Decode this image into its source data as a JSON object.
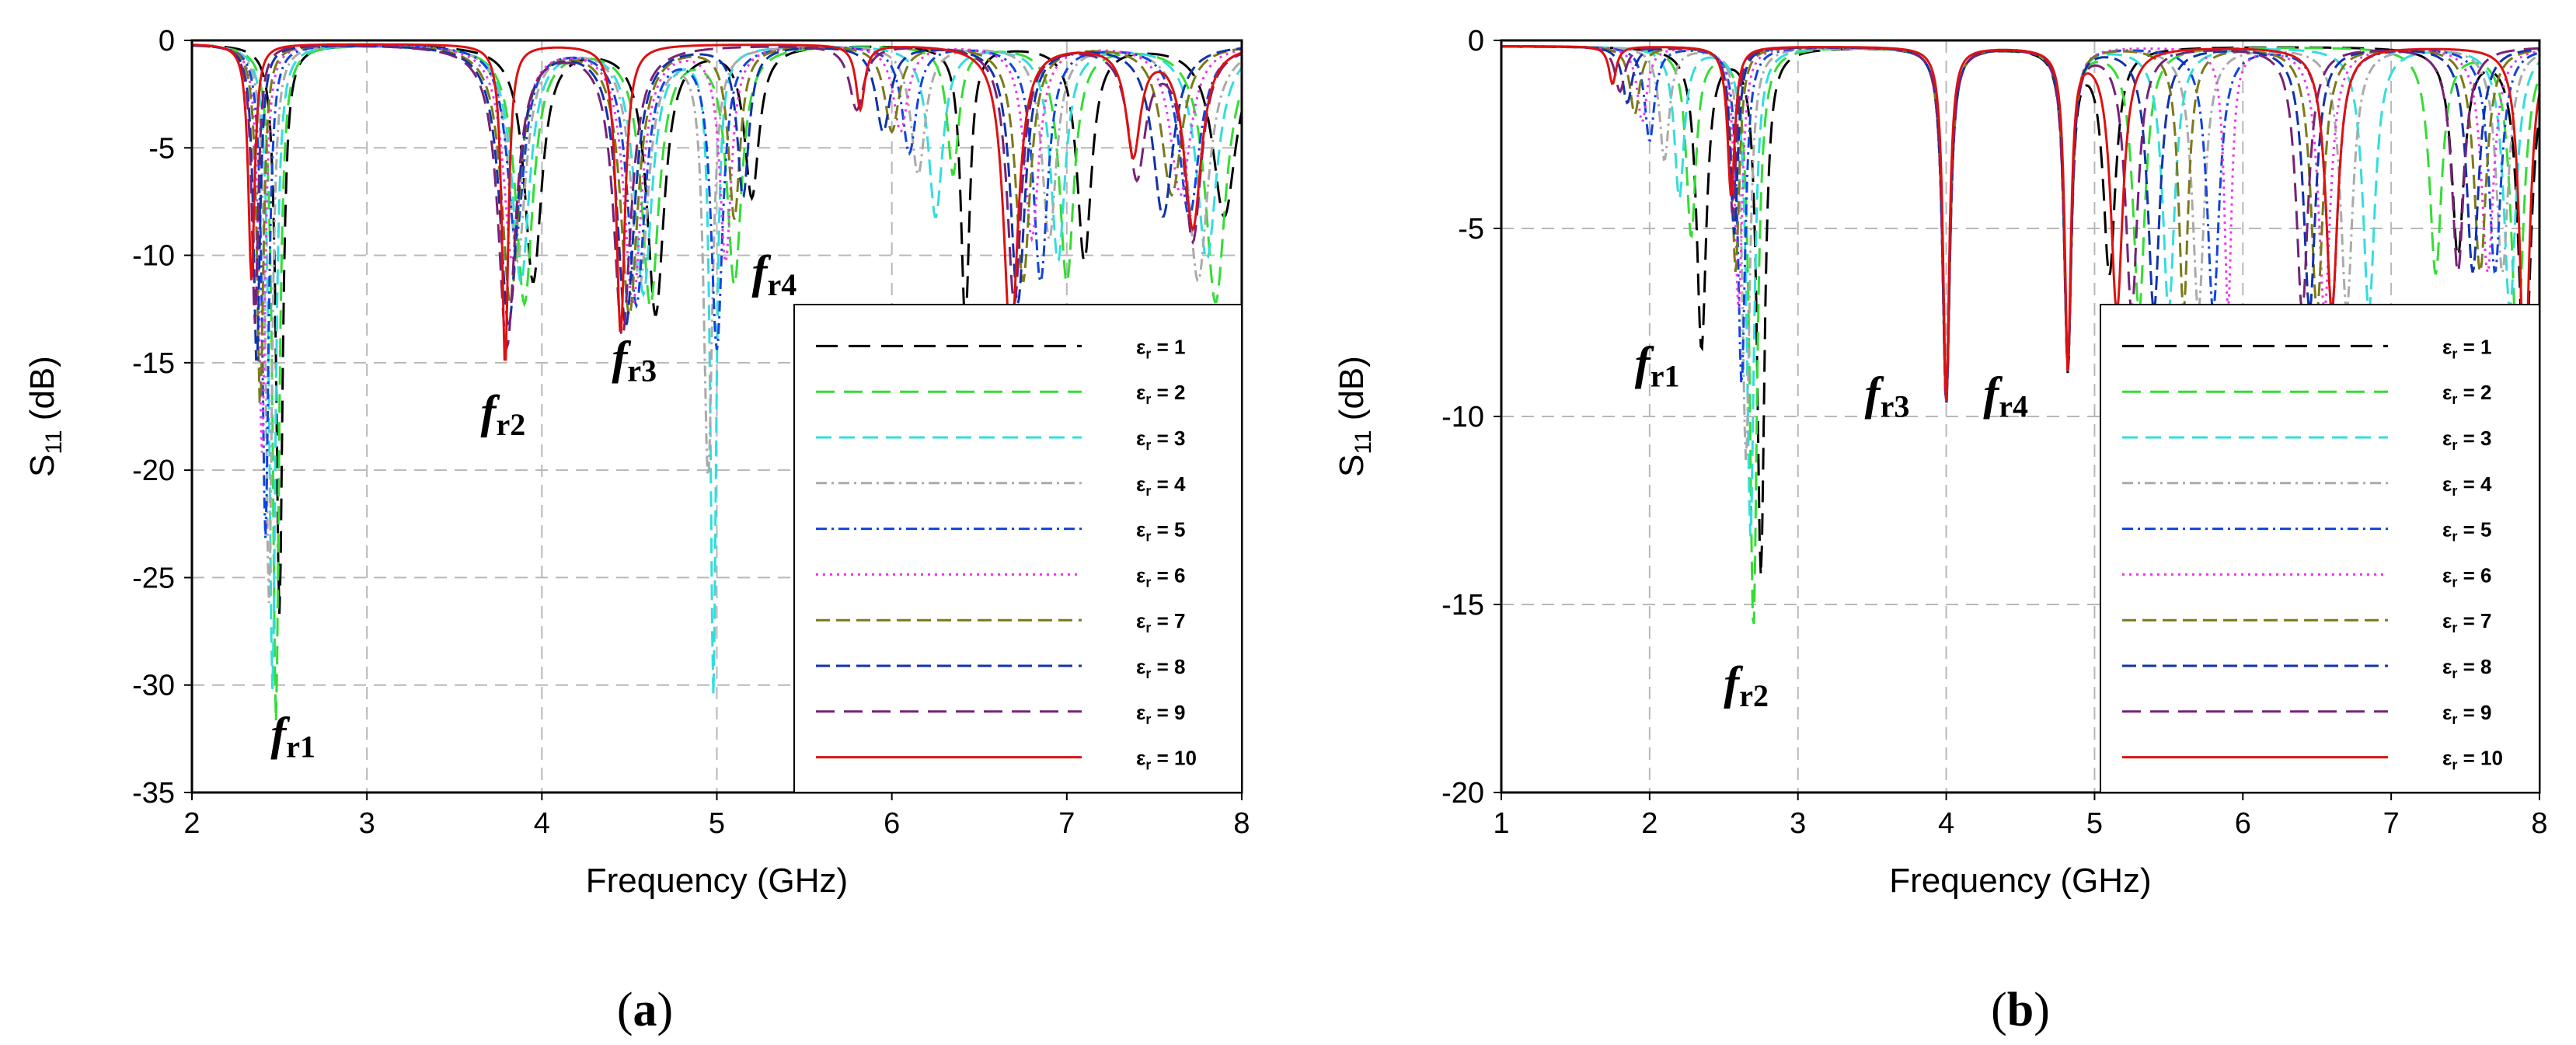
{
  "chart_data": [
    {
      "type": "line",
      "panel_label": "a",
      "xlabel": "Frequency (GHz)",
      "ylabel_main": "S",
      "ylabel_sub": "11",
      "ylabel_unit": " (dB)",
      "xlim": [
        2,
        8
      ],
      "ylim": [
        -35,
        0
      ],
      "xticks": [
        2,
        3,
        4,
        5,
        6,
        7,
        8
      ],
      "yticks": [
        0,
        -5,
        -10,
        -15,
        -20,
        -25,
        -30,
        -35
      ],
      "grid": true,
      "legend_position": "bottom-right",
      "annotations": [
        {
          "main": "f",
          "sub": "r1",
          "x": 2.45,
          "y": -33
        },
        {
          "main": "f",
          "sub": "r2",
          "x": 3.65,
          "y": -18
        },
        {
          "main": "f",
          "sub": "r3",
          "x": 4.4,
          "y": -15.5
        },
        {
          "main": "f",
          "sub": "r4",
          "x": 5.2,
          "y": -11.5
        }
      ],
      "series": [
        {
          "name": "εr = 1",
          "sym": "ε",
          "sub": "r",
          "val": " = 1",
          "color": "#000000",
          "dash": "28,14",
          "dips": [
            [
              2.5,
              -26.5,
              0.022
            ],
            [
              3.95,
              -11,
              0.06
            ],
            [
              4.65,
              -12.5,
              0.06
            ],
            [
              5.2,
              -7,
              0.05
            ],
            [
              6.42,
              -13,
              0.03
            ],
            [
              7.1,
              -10,
              0.05
            ],
            [
              7.9,
              -8,
              0.08
            ]
          ]
        },
        {
          "name": "εr = 2",
          "sym": "ε",
          "sub": "r",
          "val": " = 2",
          "color": "#33dd33",
          "dash": "24,12",
          "dips": [
            [
              2.48,
              -31.5,
              0.022
            ],
            [
              3.9,
              -12,
              0.06
            ],
            [
              4.62,
              -12,
              0.06
            ],
            [
              5.1,
              -11,
              0.05
            ],
            [
              6.35,
              -6,
              0.04
            ],
            [
              7.0,
              -11,
              0.05
            ],
            [
              7.85,
              -12,
              0.07
            ]
          ]
        },
        {
          "name": "εr = 3",
          "sym": "ε",
          "sub": "r",
          "val": " = 3",
          "color": "#33dddd",
          "dash": "20,10",
          "dips": [
            [
              2.46,
              -30,
              0.022
            ],
            [
              3.88,
              -11,
              0.06
            ],
            [
              4.58,
              -11.5,
              0.06
            ],
            [
              4.98,
              -30,
              0.02
            ],
            [
              6.25,
              -8,
              0.05
            ],
            [
              6.95,
              -10,
              0.05
            ],
            [
              7.8,
              -10,
              0.07
            ]
          ]
        },
        {
          "name": "εr = 4",
          "sym": "ε",
          "sub": "r",
          "val": " = 4",
          "color": "#aaaaaa",
          "dash": "14,6,3,6",
          "dips": [
            [
              2.44,
              -26,
              0.022
            ],
            [
              3.86,
              -10,
              0.06
            ],
            [
              4.56,
              -11,
              0.06
            ],
            [
              4.95,
              -20,
              0.03
            ],
            [
              6.15,
              -6,
              0.05
            ],
            [
              6.9,
              -9,
              0.05
            ],
            [
              7.75,
              -11,
              0.07
            ]
          ]
        },
        {
          "name": "εr = 5",
          "sym": "ε",
          "sub": "r",
          "val": " = 5",
          "color": "#1144dd",
          "dash": "14,6,3,6",
          "dips": [
            [
              2.42,
              -23,
              0.022
            ],
            [
              3.85,
              -9,
              0.06
            ],
            [
              4.54,
              -12,
              0.06
            ],
            [
              5.0,
              -14,
              0.04
            ],
            [
              6.1,
              -5,
              0.05
            ],
            [
              6.85,
              -11,
              0.05
            ],
            [
              7.7,
              -8,
              0.07
            ]
          ]
        },
        {
          "name": "εr = 6",
          "sym": "ε",
          "sub": "r",
          "val": " = 6",
          "color": "#ee33ee",
          "dash": "3,6",
          "dips": [
            [
              2.4,
              -19,
              0.022
            ],
            [
              3.83,
              -10,
              0.06
            ],
            [
              4.52,
              -12,
              0.06
            ],
            [
              5.05,
              -10,
              0.04
            ],
            [
              6.05,
              -4,
              0.05
            ],
            [
              6.8,
              -9,
              0.05
            ],
            [
              7.65,
              -7,
              0.07
            ]
          ]
        },
        {
          "name": "εr = 7",
          "sym": "ε",
          "sub": "r",
          "val": " = 7",
          "color": "#7a7a1a",
          "dash": "18,8",
          "dips": [
            [
              2.39,
              -17,
              0.022
            ],
            [
              3.82,
              -12,
              0.06
            ],
            [
              4.5,
              -12.5,
              0.06
            ],
            [
              5.1,
              -8,
              0.04
            ],
            [
              6.0,
              -4,
              0.05
            ],
            [
              6.75,
              -11,
              0.05
            ],
            [
              7.6,
              -7,
              0.07
            ]
          ]
        },
        {
          "name": "εr = 8",
          "sym": "ε",
          "sub": "r",
          "val": " = 8",
          "color": "#1133aa",
          "dash": "18,8",
          "dips": [
            [
              2.37,
              -15,
              0.022
            ],
            [
              3.81,
              -13,
              0.06
            ],
            [
              4.48,
              -13,
              0.06
            ],
            [
              5.15,
              -7,
              0.04
            ],
            [
              5.95,
              -4,
              0.05
            ],
            [
              6.72,
              -12,
              0.05
            ],
            [
              7.55,
              -8,
              0.07
            ]
          ]
        },
        {
          "name": "εr = 9",
          "sym": "ε",
          "sub": "r",
          "val": " = 9",
          "color": "#772277",
          "dash": "24,12",
          "dips": [
            [
              2.36,
              -13,
              0.022
            ],
            [
              3.8,
              -14,
              0.06
            ],
            [
              4.46,
              -13.5,
              0.06
            ],
            [
              5.8,
              -3,
              0.05
            ],
            [
              6.7,
              -12,
              0.05
            ],
            [
              7.4,
              -6,
              0.06
            ],
            [
              7.72,
              -9,
              0.06
            ]
          ]
        },
        {
          "name": "εr = 10",
          "sym": "ε",
          "sub": "r",
          "val": " = 10",
          "color": "#dd1111",
          "dash": "",
          "dips": [
            [
              2.34,
              -11,
              0.022
            ],
            [
              3.79,
              -15,
              0.022
            ],
            [
              4.45,
              -13.5,
              0.03
            ],
            [
              5.82,
              -3,
              0.03
            ],
            [
              6.68,
              -14,
              0.05
            ],
            [
              7.38,
              -5,
              0.05
            ],
            [
              7.72,
              -8.5,
              0.06
            ]
          ]
        }
      ]
    },
    {
      "type": "line",
      "panel_label": "b",
      "xlabel": "Frequency (GHz)",
      "ylabel_main": "S",
      "ylabel_sub": "11",
      "ylabel_unit": " (dB)",
      "xlim": [
        1,
        8
      ],
      "ylim": [
        -20,
        0
      ],
      "xticks": [
        1,
        2,
        3,
        4,
        5,
        6,
        7,
        8
      ],
      "yticks": [
        0,
        -5,
        -10,
        -15,
        -20
      ],
      "grid": true,
      "legend_position": "bottom-right",
      "annotations": [
        {
          "main": "f",
          "sub": "r1",
          "x": 1.9,
          "y": -9
        },
        {
          "main": "f",
          "sub": "r2",
          "x": 2.5,
          "y": -17.5
        },
        {
          "main": "f",
          "sub": "r3",
          "x": 3.45,
          "y": -9.8
        },
        {
          "main": "f",
          "sub": "r4",
          "x": 4.25,
          "y": -9.8
        }
      ],
      "series": [
        {
          "name": "εr = 1",
          "sym": "ε",
          "sub": "r",
          "val": " = 1",
          "color": "#000000",
          "dash": "28,14",
          "dips": [
            [
              2.35,
              -8,
              0.04
            ],
            [
              2.75,
              -14,
              0.03
            ],
            [
              4.0,
              -9.5,
              0.03
            ],
            [
              4.82,
              -8.5,
              0.03
            ],
            [
              5.1,
              -6,
              0.05
            ],
            [
              7.45,
              -5.5,
              0.05
            ],
            [
              7.9,
              -9,
              0.05
            ]
          ]
        },
        {
          "name": "εr = 2",
          "sym": "ε",
          "sub": "r",
          "val": " = 2",
          "color": "#33dd33",
          "dash": "24,12",
          "dips": [
            [
              2.28,
              -5,
              0.04
            ],
            [
              2.7,
              -15.5,
              0.03
            ],
            [
              4.0,
              -9.5,
              0.03
            ],
            [
              4.82,
              -8.5,
              0.03
            ],
            [
              5.3,
              -7,
              0.05
            ],
            [
              7.3,
              -6,
              0.05
            ],
            [
              7.85,
              -8,
              0.05
            ]
          ]
        },
        {
          "name": "εr = 3",
          "sym": "ε",
          "sub": "r",
          "val": " = 3",
          "color": "#33dddd",
          "dash": "20,10",
          "dips": [
            [
              2.2,
              -4,
              0.04
            ],
            [
              2.68,
              -13,
              0.03
            ],
            [
              4.0,
              -9.5,
              0.03
            ],
            [
              4.82,
              -8.5,
              0.03
            ],
            [
              5.5,
              -7,
              0.05
            ],
            [
              6.85,
              -7,
              0.05
            ],
            [
              7.8,
              -7,
              0.05
            ]
          ]
        },
        {
          "name": "εr = 4",
          "sym": "ε",
          "sub": "r",
          "val": " = 4",
          "color": "#aaaaaa",
          "dash": "14,6,3,6",
          "dips": [
            [
              2.1,
              -3,
              0.04
            ],
            [
              2.65,
              -11,
              0.03
            ],
            [
              4.0,
              -9.5,
              0.03
            ],
            [
              4.82,
              -8.5,
              0.03
            ],
            [
              5.7,
              -7,
              0.05
            ],
            [
              6.7,
              -7,
              0.05
            ],
            [
              7.75,
              -6,
              0.05
            ]
          ]
        },
        {
          "name": "εr = 5",
          "sym": "ε",
          "sub": "r",
          "val": " = 5",
          "color": "#1144dd",
          "dash": "14,6,3,6",
          "dips": [
            [
              2.0,
              -2.5,
              0.04
            ],
            [
              2.62,
              -9,
              0.03
            ],
            [
              4.0,
              -9.5,
              0.03
            ],
            [
              4.82,
              -8.5,
              0.03
            ],
            [
              5.8,
              -7,
              0.05
            ],
            [
              6.6,
              -7,
              0.05
            ],
            [
              7.7,
              -6,
              0.05
            ]
          ]
        },
        {
          "name": "εr = 6",
          "sym": "ε",
          "sub": "r",
          "val": " = 6",
          "color": "#ee33ee",
          "dash": "3,6",
          "dips": [
            [
              1.95,
              -2,
              0.04
            ],
            [
              2.6,
              -7,
              0.03
            ],
            [
              4.0,
              -9.5,
              0.03
            ],
            [
              4.82,
              -8.5,
              0.03
            ],
            [
              5.9,
              -7,
              0.03
            ],
            [
              6.55,
              -7,
              0.05
            ],
            [
              7.65,
              -6,
              0.05
            ]
          ]
        },
        {
          "name": "εr = 7",
          "sym": "ε",
          "sub": "r",
          "val": " = 7",
          "color": "#7a7a1a",
          "dash": "18,8",
          "dips": [
            [
              1.9,
              -1.8,
              0.04
            ],
            [
              2.58,
              -6,
              0.03
            ],
            [
              4.0,
              -9.5,
              0.03
            ],
            [
              4.82,
              -8.5,
              0.03
            ],
            [
              5.6,
              -7,
              0.04
            ],
            [
              6.5,
              -7,
              0.05
            ],
            [
              7.6,
              -6,
              0.05
            ]
          ]
        },
        {
          "name": "εr = 8",
          "sym": "ε",
          "sub": "r",
          "val": " = 8",
          "color": "#1133aa",
          "dash": "18,8",
          "dips": [
            [
              1.85,
              -1.5,
              0.04
            ],
            [
              2.57,
              -5,
              0.03
            ],
            [
              4.0,
              -9.5,
              0.03
            ],
            [
              4.82,
              -8.5,
              0.03
            ],
            [
              5.4,
              -7,
              0.05
            ],
            [
              6.45,
              -7,
              0.05
            ],
            [
              7.55,
              -6,
              0.05
            ]
          ]
        },
        {
          "name": "εr = 9",
          "sym": "ε",
          "sub": "r",
          "val": " = 9",
          "color": "#772277",
          "dash": "24,12",
          "dips": [
            [
              1.8,
              -1.2,
              0.04
            ],
            [
              2.56,
              -4.5,
              0.03
            ],
            [
              4.0,
              -9.5,
              0.03
            ],
            [
              4.82,
              -8.5,
              0.03
            ],
            [
              5.25,
              -7,
              0.05
            ],
            [
              6.4,
              -7,
              0.05
            ],
            [
              7.45,
              -6,
              0.05
            ]
          ]
        },
        {
          "name": "εr = 10",
          "sym": "ε",
          "sub": "r",
          "val": " = 10",
          "color": "#dd1111",
          "dash": "",
          "dips": [
            [
              1.75,
              -1,
              0.03
            ],
            [
              2.55,
              -4,
              0.03
            ],
            [
              4.0,
              -9.5,
              0.025
            ],
            [
              4.82,
              -8.5,
              0.025
            ],
            [
              5.15,
              -7,
              0.05
            ],
            [
              6.6,
              -7,
              0.05
            ],
            [
              7.9,
              -9,
              0.04
            ]
          ]
        }
      ]
    }
  ]
}
